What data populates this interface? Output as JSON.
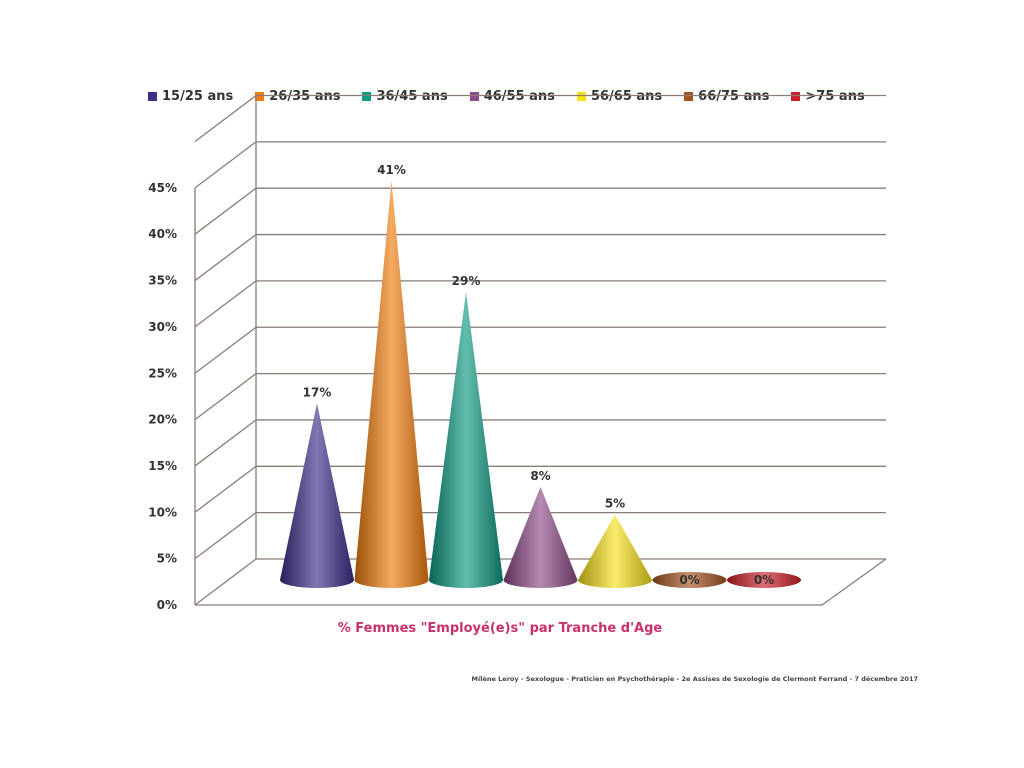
{
  "chart_data": {
    "type": "bar",
    "style": "3d-cone",
    "categories": [
      "15/25 ans",
      "26/35 ans",
      "36/45 ans",
      "46/55 ans",
      "56/65 ans",
      "66/75 ans",
      ">75 ans"
    ],
    "values": [
      17,
      41,
      29,
      8,
      5,
      0,
      0
    ],
    "data_labels": [
      "17%",
      "41%",
      "29%",
      "8%",
      "5%",
      "0%",
      "0%"
    ],
    "colors": [
      "#3b2f8a",
      "#f07c0c",
      "#0f9a82",
      "#8e4b86",
      "#f5e11a",
      "#a5541f",
      "#d01f2a"
    ],
    "yticks": [
      "0%",
      "5%",
      "10%",
      "15%",
      "20%",
      "25%",
      "30%",
      "35%",
      "40%",
      "45%"
    ],
    "ylim": [
      0,
      45
    ],
    "xlabel": "% Femmes \"Employé(e)s\" par Tranche d'Age",
    "ylabel": "",
    "legend_position": "top",
    "grid": true
  },
  "credit": "Mílène Leroy - Sexologue - Praticien en Psychothérapie - 2e Assises de Sexologie de Clermont Ferrand - 7 décembre 2017"
}
